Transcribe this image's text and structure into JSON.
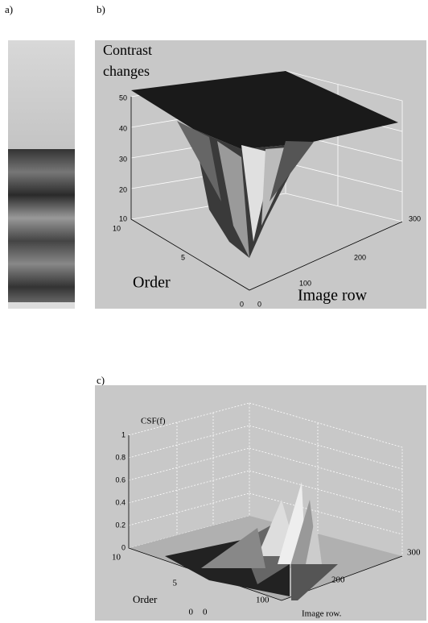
{
  "panels": {
    "a": {
      "label": "a)"
    },
    "b": {
      "label": "b)",
      "z_label": [
        "Contrast",
        "changes"
      ],
      "z_ticks": [
        "50",
        "40",
        "30",
        "20",
        "10"
      ],
      "order_label": "Order",
      "order_ticks": [
        "10",
        "5",
        "0"
      ],
      "row_label": "Image row",
      "row_ticks": [
        "0",
        "100",
        "200",
        "300"
      ]
    },
    "c": {
      "label": "c)",
      "z_label": "CSF(f)",
      "z_ticks": [
        "1",
        "0.8",
        "0.6",
        "0.4",
        "0.2",
        "0"
      ],
      "order_label": "Order",
      "order_ticks": [
        "10",
        "5",
        "0"
      ],
      "row_label": "Image row.",
      "row_ticks": [
        "0",
        "100",
        "200",
        "300"
      ]
    }
  }
}
